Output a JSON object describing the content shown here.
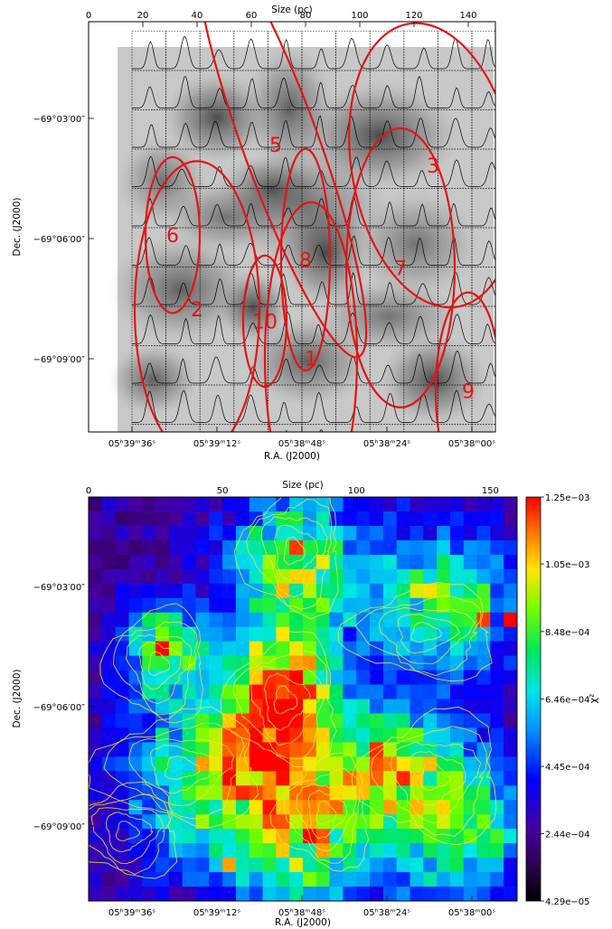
{
  "chart_data": [
    {
      "type": "image",
      "xlabel": "R.A. (J2000)",
      "ylabel": "Dec. (J2000)",
      "top_axis_label": "Size (pc)",
      "top_ticks": [
        "0",
        "20",
        "40",
        "60",
        "80",
        "100",
        "120",
        "140"
      ],
      "top_tick_values": [
        0,
        20,
        40,
        60,
        80,
        100,
        120,
        140
      ],
      "top_range": [
        0,
        150
      ],
      "x_ticks": [
        "05ʰ39ᵐ36ˢ",
        "05ʰ39ᵐ12ˢ",
        "05ʰ38ᵐ48ˢ",
        "05ʰ38ᵐ24ˢ",
        "05ʰ38ᵐ00ˢ"
      ],
      "y_ticks": [
        "−69°03′00″",
        "−69°06′00″",
        "−69°09′00″"
      ],
      "regions": [
        {
          "label": "1",
          "x": 82,
          "y": 8.2,
          "rx": 17,
          "ry": 3.8,
          "angle": 0
        },
        {
          "label": "2",
          "x": 40,
          "y": 7.0,
          "rx": 23,
          "ry": 3.6,
          "angle": 0
        },
        {
          "label": "3",
          "x": 127,
          "y": 3.5,
          "rx": 30,
          "ry": 3.5,
          "angle": -10
        },
        {
          "label": "5",
          "x": 71,
          "y": 3.0,
          "rx": 14,
          "ry": 5.5,
          "angle": -20
        },
        {
          "label": "6",
          "x": 31,
          "y": 5.2,
          "rx": 10,
          "ry": 1.9,
          "angle": 0
        },
        {
          "label": "7",
          "x": 115,
          "y": 6.0,
          "rx": 20,
          "ry": 3.4,
          "angle": 0
        },
        {
          "label": "8",
          "x": 80,
          "y": 5.8,
          "rx": 9,
          "ry": 2.7,
          "angle": 0
        },
        {
          "label": "9",
          "x": 140,
          "y": 9.0,
          "rx": 12,
          "ry": 2.4,
          "angle": 0
        },
        {
          "label": "10",
          "x": 65,
          "y": 7.3,
          "rx": 8,
          "ry": 1.6,
          "angle": 0
        }
      ]
    },
    {
      "type": "heatmap",
      "xlabel": "R.A. (J2000)",
      "ylabel": "Dec. (J2000)",
      "top_axis_label": "Size (pc)",
      "top_ticks": [
        "0",
        "50",
        "100",
        "150"
      ],
      "top_tick_values": [
        0,
        50,
        100,
        150
      ],
      "top_range": [
        0,
        160
      ],
      "x_ticks": [
        "05ʰ39ᵐ36ˢ",
        "05ʰ39ᵐ12ˢ",
        "05ʰ38ᵐ48ˢ",
        "05ʰ38ᵐ24ˢ",
        "05ʰ38ᵐ00ˢ"
      ],
      "y_ticks": [
        "−69°03′00″",
        "−69°06′00″",
        "−69°09′00″"
      ],
      "colorbar_label": "χ²",
      "colorbar_ticks": [
        "1.25e−03",
        "1.05e−03",
        "8.48e−04",
        "6.46e−04",
        "4.45e−04",
        "2.44e−04",
        "4.29e−05"
      ],
      "colorbar_tick_values": [
        0.00125,
        0.00105,
        0.000848,
        0.000646,
        0.000445,
        0.000244,
        4.29e-05
      ],
      "value_range": [
        4.29e-05,
        0.00125
      ],
      "colormap": "rainbow",
      "grid_cols": 32,
      "grid_rows": 28,
      "hotspots": [
        {
          "col": 15,
          "row": 3,
          "value": 0.0012
        },
        {
          "col": 16,
          "row": 5,
          "value": 0.00105
        },
        {
          "col": 13,
          "row": 4,
          "value": 0.00095
        },
        {
          "col": 5,
          "row": 10,
          "value": 0.00125
        },
        {
          "col": 14,
          "row": 12,
          "value": 0.0012
        },
        {
          "col": 15,
          "row": 11,
          "value": 0.0011
        },
        {
          "col": 13,
          "row": 16,
          "value": 0.0011
        },
        {
          "col": 14,
          "row": 17,
          "value": 0.0012
        },
        {
          "col": 24,
          "row": 6,
          "value": 0.001
        },
        {
          "col": 29,
          "row": 8,
          "value": 0.0012
        },
        {
          "col": 31,
          "row": 8,
          "value": 0.00125
        },
        {
          "col": 8,
          "row": 22,
          "value": 0.00095
        },
        {
          "col": 16,
          "row": 23,
          "value": 0.00125
        },
        {
          "col": 10,
          "row": 25,
          "value": 0.0011
        },
        {
          "col": 26,
          "row": 22,
          "value": 0.001
        }
      ]
    }
  ]
}
